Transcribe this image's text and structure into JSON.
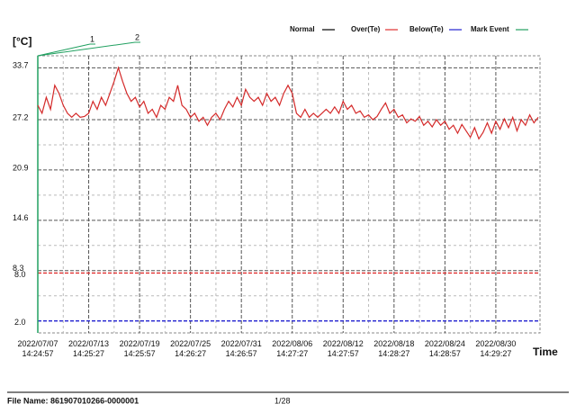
{
  "chart_data": {
    "type": "line",
    "y_label": "[°C]",
    "x_label": "Time",
    "legend": [
      {
        "name": "Normal",
        "color": "#000000"
      },
      {
        "name": "Over(Te)",
        "color": "#e03030"
      },
      {
        "name": "Below(Te)",
        "color": "#2020d0"
      },
      {
        "name": "Mark Event",
        "color": "#20a060"
      }
    ],
    "marks": [
      "1",
      "2"
    ],
    "thresholds": [
      {
        "value": 8,
        "label": "8.0",
        "color": "#e03030"
      },
      {
        "value": 2,
        "label": "2.0",
        "color": "#2020d0"
      }
    ],
    "ylim": [
      0.5,
      35.2
    ],
    "yticks": [
      8.3,
      14.6,
      20.9,
      27.2,
      33.7
    ],
    "y_minor_ticks": [
      5.15,
      11.45,
      17.75,
      24.05,
      30.45
    ],
    "xlim": [
      "2022/07/07 14:24:57",
      "2022/09/04 19:30:00"
    ],
    "xticks": [
      "2022/07/07 14:24:57",
      "2022/07/13 14:25:27",
      "2022/07/19 14:25:57",
      "2022/07/25 14:26:27",
      "2022/07/31 14:26:57",
      "2022/08/06 14:27:27",
      "2022/08/12 14:27:57",
      "2022/08/18 14:28:27",
      "2022/08/24 14:28:57",
      "2022/08/30 14:29:27"
    ],
    "grid": true,
    "series": [
      {
        "name": "Normal",
        "color": "#d42a2a",
        "x": [
          "2022/07/07 14:24",
          "2022/07/08 02:24",
          "2022/07/08 14:24",
          "2022/07/09 02:24",
          "2022/07/09 14:24",
          "2022/07/10 02:24",
          "2022/07/10 14:24",
          "2022/07/11 02:24",
          "2022/07/11 14:24",
          "2022/07/12 02:24",
          "2022/07/12 14:24",
          "2022/07/13 02:24",
          "2022/07/13 14:24",
          "2022/07/14 02:24",
          "2022/07/14 14:24",
          "2022/07/15 02:24",
          "2022/07/15 14:24",
          "2022/07/16 02:24",
          "2022/07/16 14:24",
          "2022/07/17 02:24",
          "2022/07/17 14:24",
          "2022/07/18 02:24",
          "2022/07/18 14:24",
          "2022/07/19 02:24",
          "2022/07/19 14:24",
          "2022/07/20 02:24",
          "2022/07/20 14:24",
          "2022/07/21 02:24",
          "2022/07/21 14:24",
          "2022/07/22 02:24",
          "2022/07/22 14:24",
          "2022/07/23 02:24",
          "2022/07/23 14:24",
          "2022/07/24 02:24",
          "2022/07/24 14:24",
          "2022/07/25 02:24",
          "2022/07/25 14:24",
          "2022/07/26 02:24",
          "2022/07/26 14:24",
          "2022/07/27 02:24",
          "2022/07/27 14:24",
          "2022/07/28 02:24",
          "2022/07/28 14:24",
          "2022/07/29 02:24",
          "2022/07/29 14:24",
          "2022/07/30 02:24",
          "2022/07/30 14:24",
          "2022/07/31 02:24",
          "2022/07/31 14:24",
          "2022/08/01 02:24",
          "2022/08/01 14:24",
          "2022/08/02 02:24",
          "2022/08/02 14:24",
          "2022/08/03 02:24",
          "2022/08/03 14:24",
          "2022/08/04 02:24",
          "2022/08/04 14:24",
          "2022/08/05 02:24",
          "2022/08/05 14:24",
          "2022/08/06 02:24",
          "2022/08/06 14:24",
          "2022/08/07 02:24",
          "2022/08/07 14:24",
          "2022/08/08 02:24",
          "2022/08/08 14:24",
          "2022/08/09 02:24",
          "2022/08/09 14:24",
          "2022/08/10 02:24",
          "2022/08/10 14:24",
          "2022/08/11 02:24",
          "2022/08/11 14:24",
          "2022/08/12 02:24",
          "2022/08/12 14:24",
          "2022/08/13 02:24",
          "2022/08/13 14:24",
          "2022/08/14 02:24",
          "2022/08/14 14:24",
          "2022/08/15 02:24",
          "2022/08/15 14:24",
          "2022/08/16 02:24",
          "2022/08/16 14:24",
          "2022/08/17 02:24",
          "2022/08/17 14:24",
          "2022/08/18 02:24",
          "2022/08/18 14:24",
          "2022/08/19 02:24",
          "2022/08/19 14:24",
          "2022/08/20 02:24",
          "2022/08/20 14:24",
          "2022/08/21 02:24",
          "2022/08/21 14:24",
          "2022/08/22 02:24",
          "2022/08/22 14:24",
          "2022/08/23 02:24",
          "2022/08/23 14:24",
          "2022/08/24 02:24",
          "2022/08/24 14:24",
          "2022/08/25 02:24",
          "2022/08/25 14:24",
          "2022/08/26 02:24",
          "2022/08/26 14:24",
          "2022/08/27 02:24",
          "2022/08/27 14:24",
          "2022/08/28 02:24",
          "2022/08/28 14:24",
          "2022/08/29 02:24",
          "2022/08/29 14:24",
          "2022/08/30 02:24",
          "2022/08/30 14:24",
          "2022/08/31 02:24",
          "2022/08/31 14:24",
          "2022/09/01 02:24",
          "2022/09/01 14:24",
          "2022/09/02 02:24",
          "2022/09/02 14:24",
          "2022/09/03 02:24",
          "2022/09/03 14:24",
          "2022/09/04 02:24",
          "2022/09/04 14:24"
        ],
        "values": [
          29.0,
          28.0,
          30.0,
          28.5,
          31.5,
          30.5,
          29.0,
          28.0,
          27.5,
          28.0,
          27.5,
          27.6,
          28.0,
          29.5,
          28.5,
          30.0,
          29.0,
          30.5,
          32.0,
          33.7,
          32.0,
          30.5,
          29.5,
          30.0,
          28.8,
          29.5,
          28.0,
          28.5,
          27.5,
          29.0,
          28.5,
          30.0,
          29.5,
          31.5,
          29.0,
          28.5,
          27.5,
          28.0,
          27.0,
          27.5,
          26.5,
          27.5,
          28.0,
          27.2,
          28.5,
          29.5,
          28.8,
          30.0,
          29.0,
          31.0,
          30.0,
          29.5,
          30.0,
          29.0,
          30.5,
          29.5,
          30.0,
          29.0,
          30.5,
          31.5,
          30.5,
          28.0,
          27.5,
          28.5,
          27.5,
          28.0,
          27.5,
          28.0,
          28.5,
          28.0,
          28.8,
          28.0,
          29.5,
          28.5,
          29.0,
          28.0,
          28.3,
          27.5,
          27.8,
          27.2,
          27.6,
          28.5,
          29.3,
          28.0,
          28.5,
          27.5,
          27.8,
          26.8,
          27.3,
          27.0,
          27.6,
          26.5,
          27.0,
          26.3,
          27.2,
          26.5,
          27.0,
          26.0,
          26.5,
          25.5,
          26.6,
          25.8,
          25.0,
          26.2,
          24.8,
          25.6,
          26.8,
          25.5,
          27.0,
          26.0,
          27.3,
          26.2,
          27.5,
          25.8,
          27.2,
          26.5,
          27.8,
          26.8,
          27.5
        ]
      }
    ]
  },
  "footer": {
    "file_name": "File Name: 861907010266-0000001",
    "page": "1/28"
  }
}
